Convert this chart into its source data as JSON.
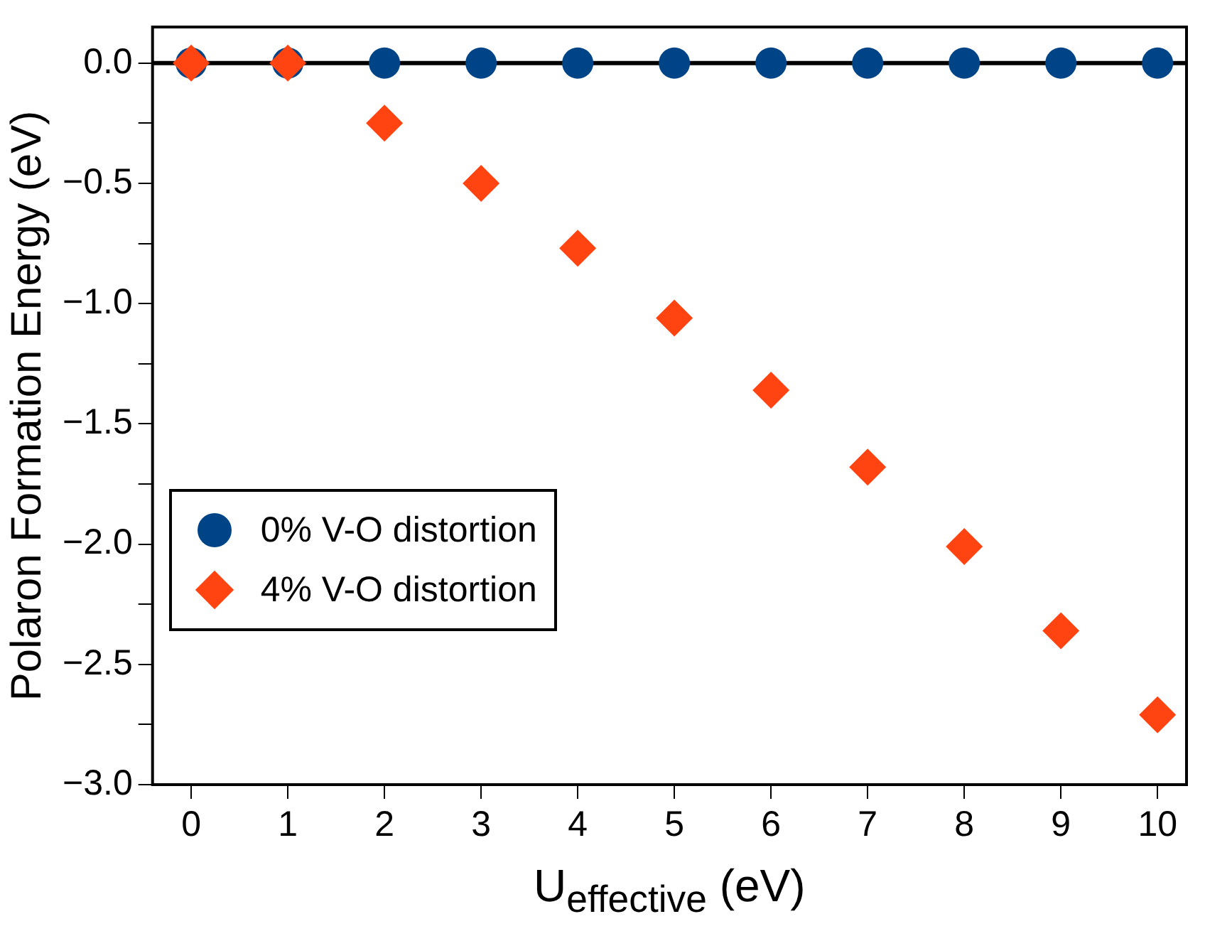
{
  "chart_data": {
    "type": "scatter",
    "xlabel": "U$_{effective}$ (eV)",
    "ylabel": "Polaron Formation Energy (eV)",
    "x": [
      0,
      1,
      2,
      3,
      4,
      5,
      6,
      7,
      8,
      9,
      10
    ],
    "series": [
      {
        "name": "0% V-O distortion",
        "color": "#004488",
        "marker": "circle",
        "values": [
          0,
          0,
          0,
          0,
          0,
          0,
          0,
          0,
          0,
          0,
          0
        ]
      },
      {
        "name": "4% V-O distortion",
        "color": "#ff4411",
        "marker": "diamond",
        "values": [
          0,
          0,
          -0.25,
          -0.5,
          -0.77,
          -1.06,
          -1.36,
          -1.68,
          -2.01,
          -2.36,
          -2.71
        ]
      }
    ],
    "xlim": [
      -0.4,
      10.3
    ],
    "xticks": [
      0,
      1,
      2,
      3,
      4,
      5,
      6,
      7,
      8,
      9,
      10
    ],
    "ylim": [
      -3.0,
      0.15
    ],
    "yticks": [
      {
        "value": -3.0,
        "label": "−3.0"
      },
      {
        "value": -2.75,
        "label": null
      },
      {
        "value": -2.5,
        "label": "−2.5"
      },
      {
        "value": -2.25,
        "label": null
      },
      {
        "value": -2.0,
        "label": "−2.0"
      },
      {
        "value": -1.75,
        "label": null
      },
      {
        "value": -1.5,
        "label": "−1.5"
      },
      {
        "value": -1.25,
        "label": null
      },
      {
        "value": -1.0,
        "label": "−1.0"
      },
      {
        "value": -0.75,
        "label": null
      },
      {
        "value": -0.5,
        "label": "−0.5"
      },
      {
        "value": -0.25,
        "label": null
      },
      {
        "value": 0,
        "label": "0.0"
      }
    ],
    "ref_lines": [
      {
        "axis": "y",
        "value": 0,
        "color": "#000000"
      }
    ],
    "grid": false,
    "legend": "bottom left"
  }
}
